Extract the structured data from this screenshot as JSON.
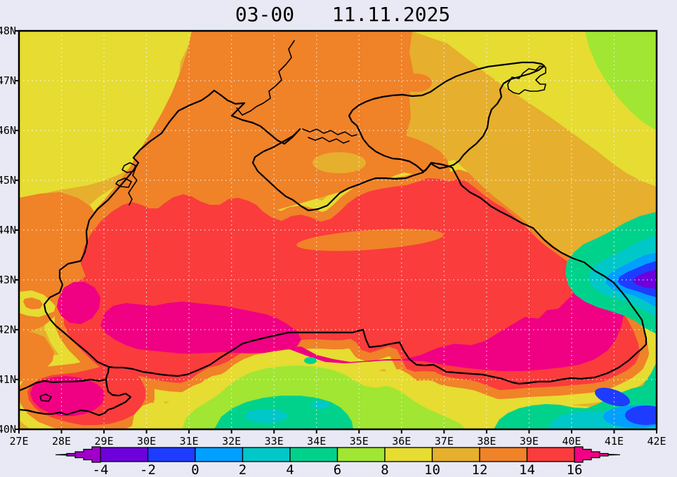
{
  "title": {
    "time": "03-00",
    "date": "11.11.2025"
  },
  "axes": {
    "lat_labels": [
      "48N",
      "47N",
      "46N",
      "45N",
      "44N",
      "43N",
      "42N",
      "41N",
      "40N"
    ],
    "lon_labels": [
      "27E",
      "28E",
      "29E",
      "30E",
      "31E",
      "32E",
      "33E",
      "34E",
      "35E",
      "36E",
      "37E",
      "38E",
      "39E",
      "40E",
      "41E",
      "42E"
    ]
  },
  "colorbar": {
    "tick_labels": [
      "-4",
      "-2",
      "0",
      "2",
      "4",
      "6",
      "8",
      "10",
      "12",
      "14",
      "16"
    ],
    "below_color": "#A000C8",
    "above_color": "#F00082",
    "segment_colors": [
      "#6E00DC",
      "#1E3CFF",
      "#00A0FF",
      "#00C8C8",
      "#00D28C",
      "#A0E632",
      "#E6DC32",
      "#E6AF2D",
      "#F08228",
      "#FA3C3C"
    ]
  },
  "colors": {
    "background": "#E8E9F4",
    "coastline": "#000000",
    "gridlines": "#FFFFFF",
    "text": "#000000"
  },
  "chart_data": {
    "type": "heatmap",
    "title": "03-00 11.11.2025",
    "x_ticks": [
      "27E",
      "28E",
      "29E",
      "30E",
      "31E",
      "32E",
      "33E",
      "34E",
      "35E",
      "36E",
      "37E",
      "38E",
      "39E",
      "40E",
      "41E",
      "42E"
    ],
    "y_ticks": [
      "40N",
      "41N",
      "42N",
      "43N",
      "44N",
      "45N",
      "46N",
      "47N",
      "48N"
    ],
    "x_range": [
      "27E",
      "42E"
    ],
    "y_range": [
      "40N",
      "48N"
    ],
    "levels": [
      -4,
      -2,
      0,
      2,
      4,
      6,
      8,
      10,
      12,
      14,
      16
    ],
    "palette_below": "#A000C8",
    "palette": [
      "#6E00DC",
      "#1E3CFF",
      "#00A0FF",
      "#00C8C8",
      "#00D28C",
      "#A0E632",
      "#E6DC32",
      "#E6AF2D",
      "#F08228",
      "#FA3C3C"
    ],
    "palette_above": "#F00082",
    "legend_position": "bottom",
    "grid": true,
    "observations": [
      "Black Sea water mostly 14 to >16; cores above 16 in the western basin (29-33E, 41-42.5N), the eastern basin (36-41E, 41-43.5N) and the Sea of Marmara",
      "Land north of the sea (Ukraine/Russia) about 8-12, yellow-green pocket below 8 at the far NE corner",
      "Anatolian interior 2-8 with pockets of 2-4",
      "Cold mountain spots at the eastern edge (~41-42E, 43N) down to below -4 and SE corner (40-42E, 40-41N) around -2 to 2"
    ]
  }
}
